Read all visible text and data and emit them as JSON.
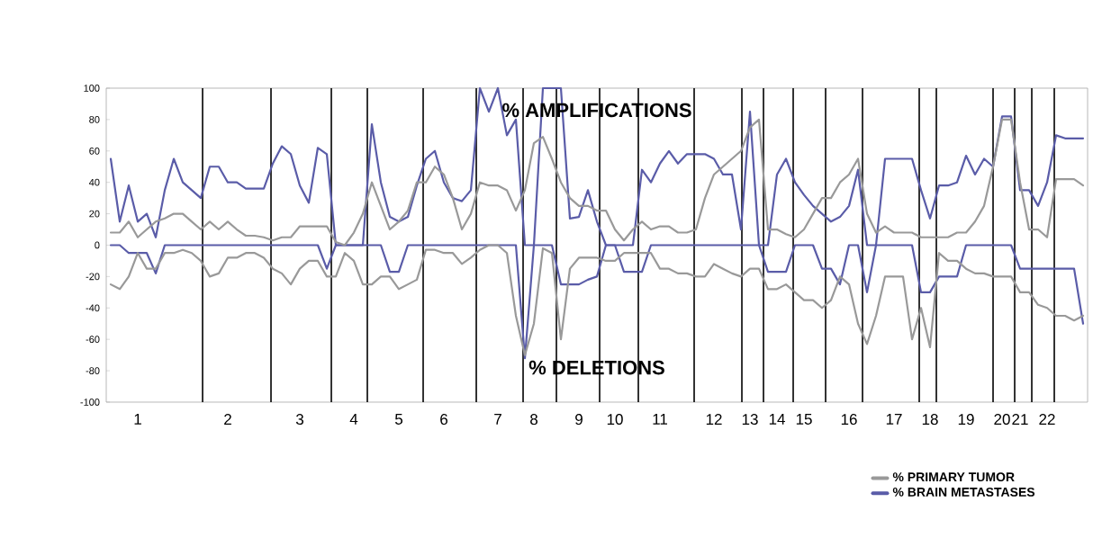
{
  "chart_data": {
    "type": "line",
    "annotations": [
      "% AMPLIFICATIONS",
      "% DELETIONS"
    ],
    "categories": [
      null,
      null,
      null,
      "1",
      null,
      null,
      null,
      null,
      null,
      null,
      null,
      null,
      null,
      "2",
      null,
      null,
      null,
      null,
      null,
      null,
      null,
      "3",
      null,
      null,
      null,
      null,
      null,
      "4",
      null,
      null,
      null,
      null,
      "5",
      null,
      null,
      null,
      null,
      "6",
      null,
      null,
      null,
      null,
      null,
      "7",
      null,
      null,
      null,
      "8",
      null,
      null,
      null,
      null,
      "9",
      null,
      null,
      null,
      "10",
      null,
      null,
      null,
      null,
      "11",
      null,
      null,
      null,
      null,
      null,
      "12",
      null,
      null,
      null,
      "13",
      null,
      null,
      "14",
      null,
      null,
      "15",
      null,
      null,
      null,
      null,
      "16",
      null,
      null,
      null,
      null,
      "17",
      null,
      null,
      null,
      "18",
      null,
      null,
      null,
      "19",
      null,
      null,
      null,
      "20",
      null,
      "21",
      null,
      null,
      "22",
      null,
      null,
      null,
      null
    ],
    "ylim": [
      -100,
      100
    ],
    "yticks": [
      -100,
      -80,
      -60,
      -40,
      -20,
      0,
      20,
      40,
      60,
      80,
      100
    ],
    "legend": "bottom right",
    "series": [
      {
        "name": "% BRAIN METASTASES",
        "color": "#5a5ca8",
        "values": [
          55,
          15,
          38,
          15,
          20,
          5,
          35,
          55,
          40,
          35,
          30,
          50,
          50,
          40,
          40,
          36,
          36,
          36,
          52,
          63,
          58,
          38,
          27,
          62,
          58,
          0,
          0,
          0,
          0,
          77,
          40,
          18,
          15,
          18,
          38,
          55,
          60,
          40,
          30,
          28,
          35,
          100,
          85,
          100,
          70,
          80,
          0,
          0,
          100,
          100,
          100,
          17,
          18,
          35,
          15,
          0,
          0,
          0,
          0,
          48,
          40,
          52,
          60,
          52,
          58,
          58,
          58,
          55,
          45,
          45,
          10,
          85,
          0,
          0,
          45,
          55,
          40,
          32,
          25,
          20,
          15,
          18,
          25,
          48,
          0,
          0,
          55,
          55,
          55,
          55,
          35,
          17,
          38,
          38,
          40,
          57,
          45,
          55,
          50,
          82,
          82,
          35,
          35,
          25,
          40,
          70,
          68,
          68,
          68
        ]
      },
      {
        "color": "#5a5ca8",
        "values": [
          0,
          0,
          -5,
          -5,
          -5,
          -18,
          0,
          0,
          0,
          0,
          0,
          0,
          0,
          0,
          0,
          0,
          0,
          0,
          0,
          0,
          0,
          0,
          0,
          0,
          -15,
          0,
          0,
          0,
          0,
          0,
          0,
          -17,
          -17,
          0,
          0,
          0,
          0,
          0,
          0,
          0,
          0,
          0,
          0,
          0,
          0,
          0,
          -72,
          0,
          0,
          0,
          -25,
          -25,
          -25,
          -22,
          -20,
          0,
          0,
          -17,
          -17,
          -17,
          0,
          0,
          0,
          0,
          0,
          0,
          0,
          0,
          0,
          0,
          0,
          0,
          0,
          -17,
          -17,
          -17,
          0,
          0,
          0,
          -15,
          -15,
          -25,
          0,
          0,
          -30,
          0,
          0,
          0,
          0,
          0,
          -30,
          -30,
          -20,
          -20,
          -20,
          0,
          0,
          0,
          0,
          0,
          0,
          -15,
          -15,
          -15,
          -15,
          -15,
          -15,
          -15,
          -50
        ]
      },
      {
        "name": "% PRIMARY TUMOR",
        "color": "#999999",
        "values": [
          8,
          8,
          15,
          5,
          10,
          15,
          17,
          20,
          20,
          15,
          10,
          15,
          10,
          15,
          10,
          6,
          6,
          5,
          3,
          5,
          5,
          12,
          12,
          12,
          12,
          2,
          0,
          8,
          20,
          40,
          25,
          10,
          15,
          22,
          40,
          40,
          50,
          45,
          30,
          10,
          20,
          40,
          38,
          38,
          35,
          22,
          35,
          65,
          69,
          55,
          40,
          30,
          25,
          25,
          22,
          22,
          10,
          3,
          10,
          15,
          10,
          12,
          12,
          8,
          8,
          10,
          30,
          45,
          50,
          55,
          60,
          75,
          80,
          10,
          10,
          7,
          5,
          10,
          20,
          30,
          30,
          40,
          45,
          55,
          20,
          8,
          12,
          8,
          8,
          8,
          5,
          5,
          5,
          5,
          8,
          8,
          15,
          25,
          50,
          80,
          80,
          40,
          10,
          10,
          5,
          42,
          42,
          42,
          38
        ]
      },
      {
        "color": "#999999",
        "values": [
          -25,
          -28,
          -20,
          -5,
          -15,
          -15,
          -5,
          -5,
          -3,
          -5,
          -10,
          -20,
          -18,
          -8,
          -8,
          -5,
          -5,
          -8,
          -15,
          -18,
          -25,
          -15,
          -10,
          -10,
          -20,
          -20,
          -5,
          -10,
          -25,
          -25,
          -20,
          -20,
          -28,
          -25,
          -22,
          -3,
          -3,
          -5,
          -5,
          -12,
          -8,
          -3,
          0,
          0,
          -5,
          -45,
          -70,
          -50,
          -2,
          -5,
          -60,
          -15,
          -8,
          -8,
          -8,
          -10,
          -10,
          -5,
          -5,
          -5,
          -5,
          -15,
          -15,
          -18,
          -18,
          -20,
          -20,
          -12,
          -15,
          -18,
          -20,
          -15,
          -15,
          -28,
          -28,
          -25,
          -30,
          -35,
          -35,
          -40,
          -35,
          -20,
          -25,
          -50,
          -63,
          -45,
          -20,
          -20,
          -20,
          -60,
          -40,
          -65,
          -5,
          -10,
          -10,
          -15,
          -18,
          -18,
          -20,
          -20,
          -20,
          -30,
          -30,
          -38,
          -40,
          -45,
          -45,
          -48,
          -45
        ]
      }
    ]
  }
}
